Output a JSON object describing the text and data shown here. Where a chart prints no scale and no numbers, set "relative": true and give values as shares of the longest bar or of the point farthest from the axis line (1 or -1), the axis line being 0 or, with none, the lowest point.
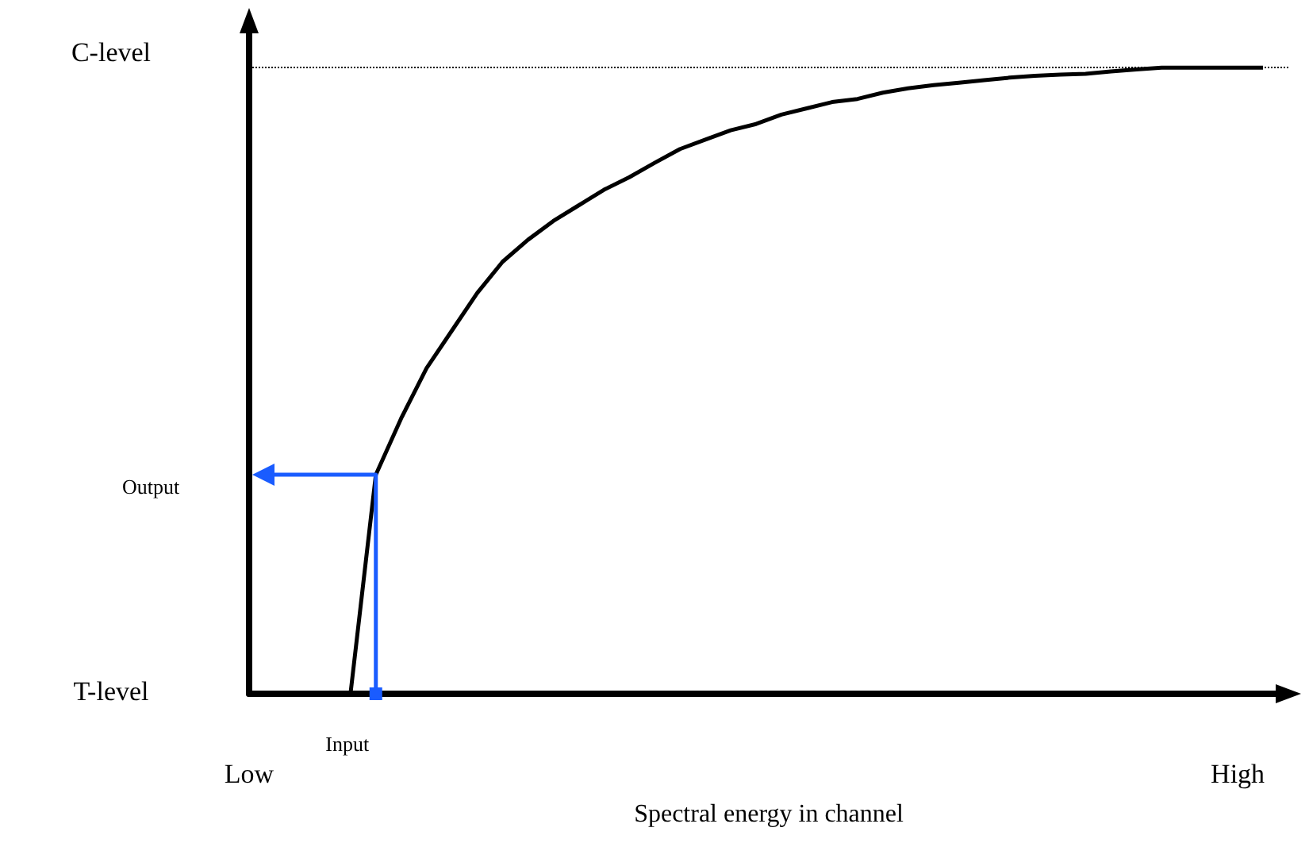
{
  "chart_data": {
    "type": "line",
    "xlabel": "Spectral energy in channel",
    "relative": true,
    "color": "#000000",
    "categories": [
      "Low",
      null,
      null,
      null,
      null,
      null,
      null,
      null,
      null,
      null,
      null,
      null,
      null,
      null,
      null,
      null,
      null,
      null,
      null,
      null,
      null,
      null,
      null,
      null,
      null,
      null,
      null,
      null,
      null,
      null,
      null,
      null,
      null,
      null,
      null,
      null,
      null,
      null,
      null,
      "High",
      null,
      null
    ],
    "values": [
      null,
      null,
      null,
      null,
      0,
      0.35,
      0.44,
      0.52,
      0.58,
      0.64,
      0.69,
      0.725,
      0.755,
      0.78,
      0.805,
      0.825,
      0.848,
      0.87,
      0.885,
      0.9,
      0.91,
      0.925,
      0.935,
      0.945,
      0.95,
      0.96,
      0.967,
      0.972,
      0.976,
      0.98,
      0.984,
      0.987,
      0.989,
      0.99,
      0.994,
      0.997,
      1,
      1,
      1,
      1,
      1,
      null
    ],
    "ref_lines": [
      {
        "axis": "y",
        "value": 1,
        "color": "#000000",
        "line_style": "dotted"
      }
    ],
    "annotations": [
      "C-level",
      "T-level",
      "Input",
      "Output"
    ]
  }
}
